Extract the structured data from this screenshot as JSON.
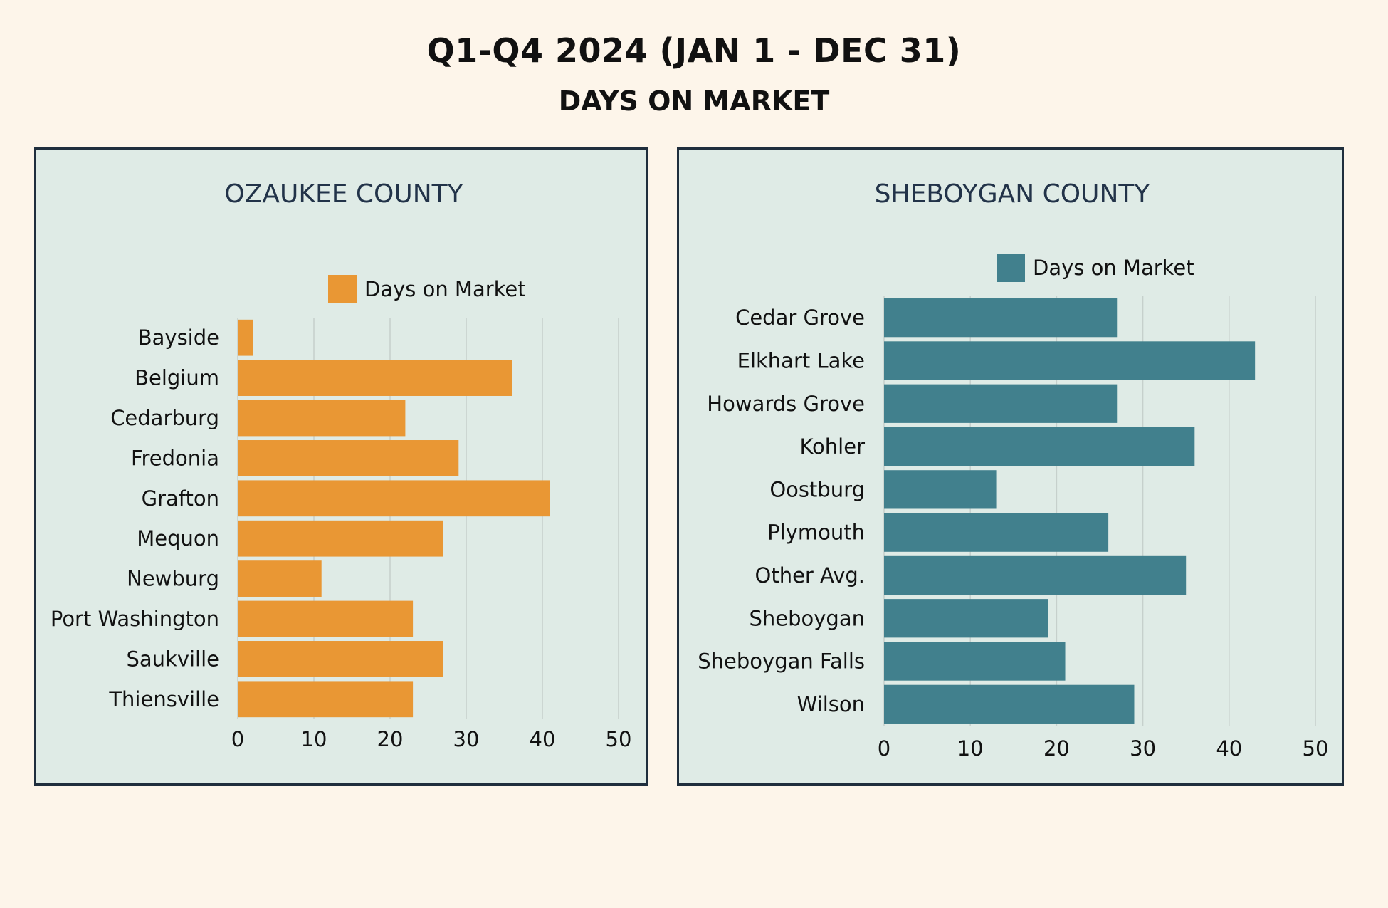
{
  "title": "Q1-Q4 2024 (JAN 1 - DEC 31)",
  "subtitle": "DAYS ON MARKET",
  "chart_data": [
    {
      "type": "bar",
      "orientation": "horizontal",
      "title": "OZAUKEE COUNTY",
      "categories": [
        "Bayside",
        "Belgium",
        "Cedarburg",
        "Fredonia",
        "Grafton",
        "Mequon",
        "Newburg",
        "Port Washington",
        "Saukville",
        "Thiensville"
      ],
      "series": [
        {
          "name": "Days on Market",
          "values": [
            2,
            36,
            22,
            29,
            41,
            27,
            11,
            23,
            27,
            23
          ],
          "color": "#e99734"
        }
      ],
      "xlim": [
        0,
        50
      ],
      "xticks": [
        0,
        10,
        20,
        30,
        40,
        50
      ],
      "grid": true,
      "legend": "top"
    },
    {
      "type": "bar",
      "orientation": "horizontal",
      "title": "SHEBOYGAN COUNTY",
      "categories": [
        "Cedar Grove",
        "Elkhart Lake",
        "Howards Grove",
        "Kohler",
        "Oostburg",
        "Plymouth",
        "Other Avg.",
        "Sheboygan",
        "Sheboygan Falls",
        "Wilson"
      ],
      "series": [
        {
          "name": "Days on Market",
          "values": [
            27,
            43,
            27,
            36,
            13,
            26,
            35,
            19,
            21,
            29
          ],
          "color": "#41808d"
        }
      ],
      "xlim": [
        0,
        50
      ],
      "xticks": [
        0,
        10,
        20,
        30,
        40,
        50
      ],
      "grid": true,
      "legend": "top"
    }
  ]
}
